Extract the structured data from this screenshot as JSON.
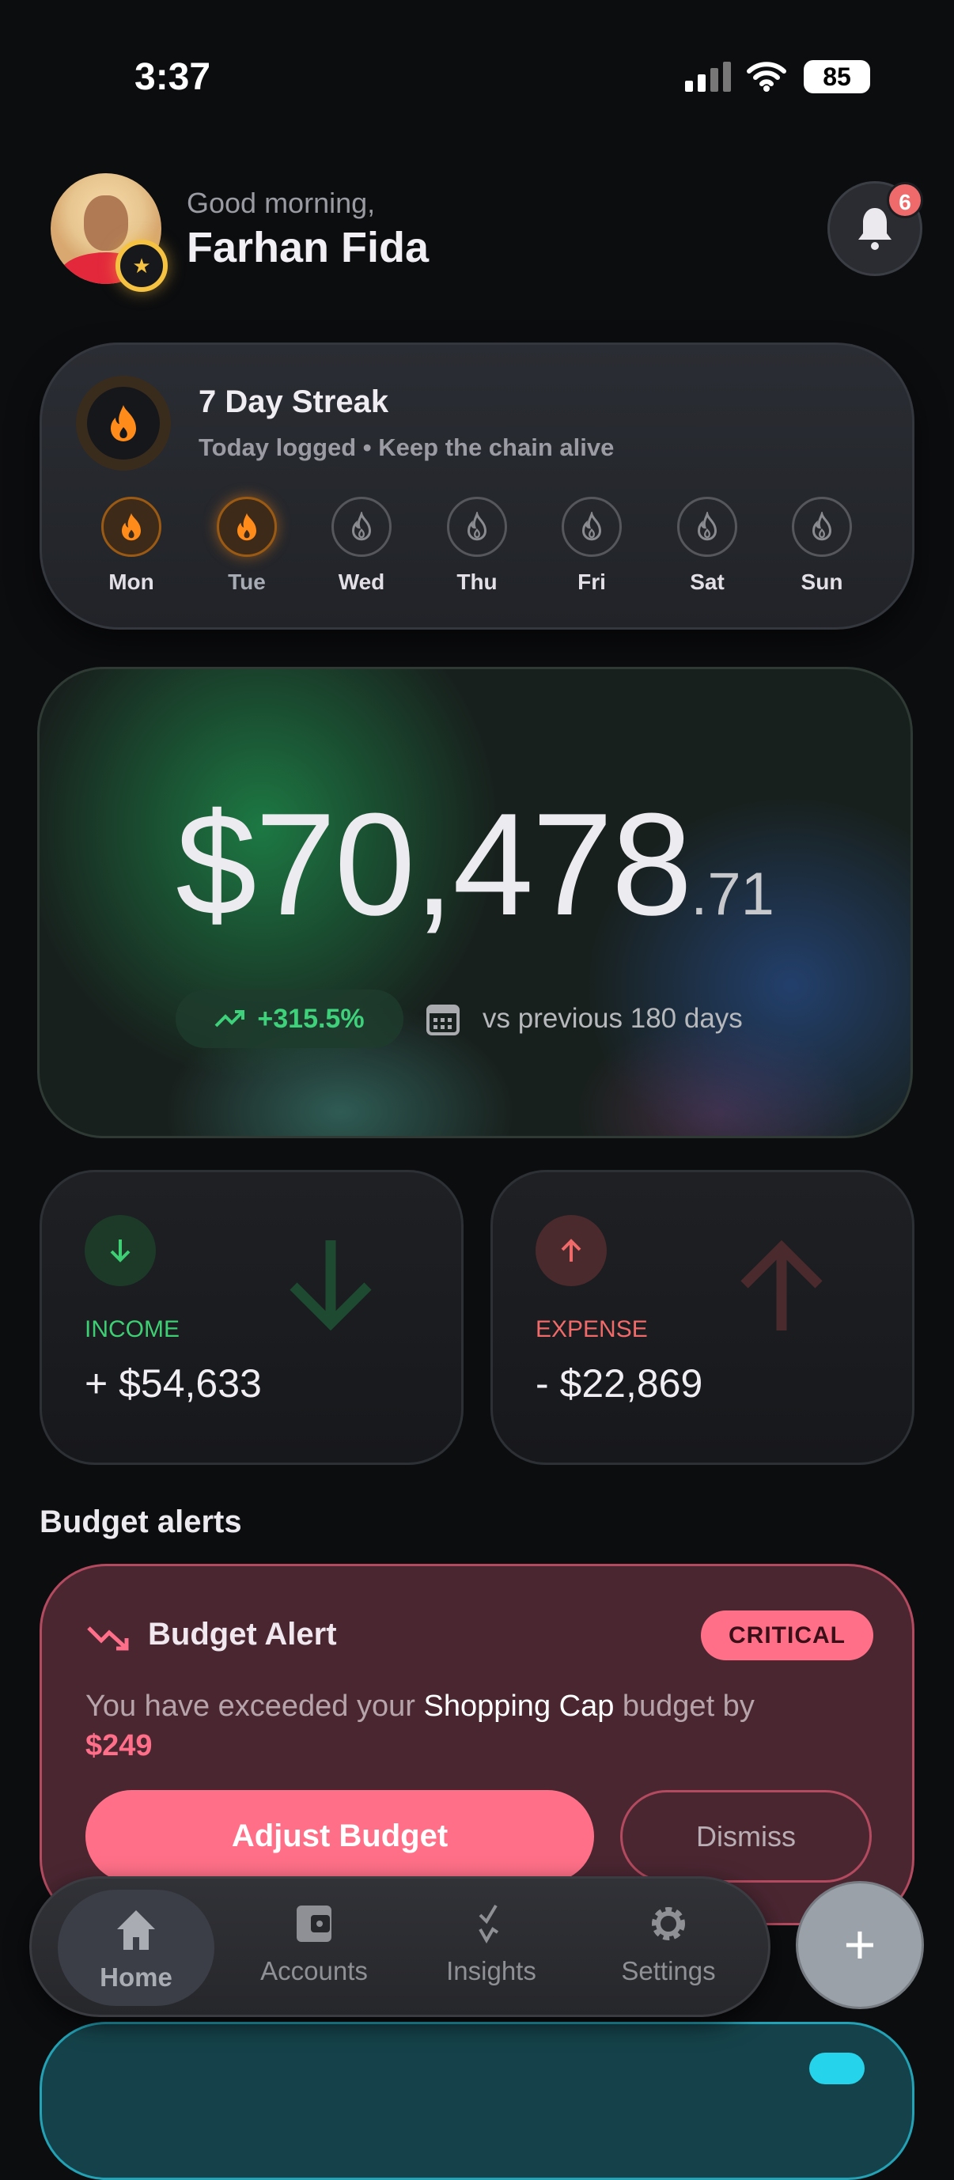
{
  "status_bar": {
    "time": "3:37",
    "battery": "85"
  },
  "header": {
    "greeting": "Good morning,",
    "name": "Farhan Fida",
    "notification_count": "6"
  },
  "streak": {
    "title": "7 Day Streak",
    "subtitle": "Today logged • Keep the chain alive",
    "days": [
      {
        "label": "Mon",
        "done": true
      },
      {
        "label": "Tue",
        "done": true,
        "today": true
      },
      {
        "label": "Wed",
        "done": false
      },
      {
        "label": "Thu",
        "done": false
      },
      {
        "label": "Fri",
        "done": false
      },
      {
        "label": "Sat",
        "done": false
      },
      {
        "label": "Sun",
        "done": false
      }
    ]
  },
  "balance": {
    "whole": "$70,478",
    "cents": ".71",
    "change": "+315.5%",
    "period": "vs previous 180 days"
  },
  "income": {
    "label": "INCOME",
    "value": "+ $54,633",
    "color": "#3ecf75"
  },
  "expense": {
    "label": "EXPENSE",
    "value": "- $22,869",
    "color": "#f06a6a"
  },
  "budget_alerts": {
    "section_title": "Budget alerts",
    "title": "Budget Alert",
    "severity": "CRITICAL",
    "text_prefix": "You have exceeded your ",
    "budget_name": "Shopping Cap",
    "text_suffix": " budget by ",
    "amount": "$249",
    "adjust_label": "Adjust Budget",
    "dismiss_label": "Dismiss"
  },
  "nav": {
    "items": [
      {
        "label": "Home",
        "icon": "home-icon"
      },
      {
        "label": "Accounts",
        "icon": "wallet-icon"
      },
      {
        "label": "Insights",
        "icon": "insights-icon"
      },
      {
        "label": "Settings",
        "icon": "gear-icon"
      }
    ],
    "fab": "+"
  },
  "colors": {
    "accent_orange": "#ff8c1a",
    "critical": "#ff7088",
    "positive": "#3ed07a"
  }
}
